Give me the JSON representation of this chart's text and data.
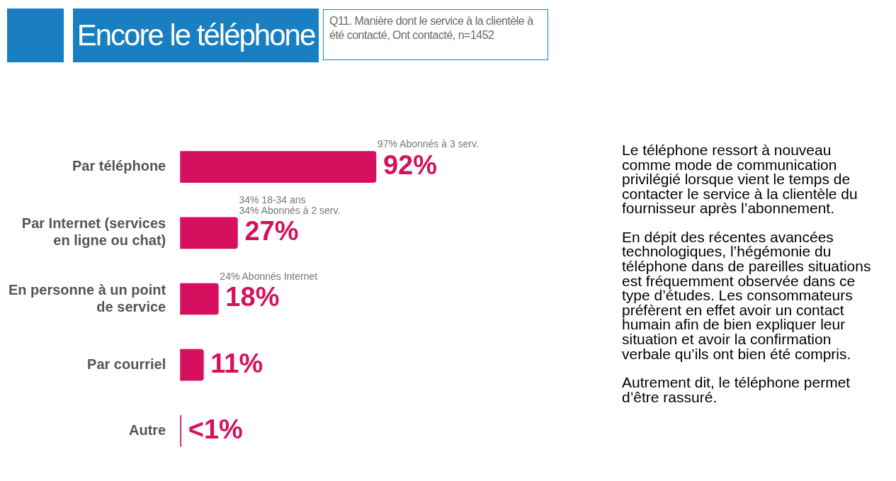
{
  "chart_data": {
    "type": "bar",
    "orientation": "horizontal",
    "tick_labels": "y",
    "title": "Encore le téléphone",
    "subtitle": "Q11. Manière dont le service à la clientèle à été contacté, Ont contacté, n=1452",
    "categories": [
      "Par téléphone",
      "Par Internet (services en ligne ou chat)",
      "En personne à un point de service",
      "Par courriel",
      "Autre"
    ],
    "values": [
      92,
      27,
      18,
      11,
      0.5
    ],
    "value_labels": [
      "92%",
      "27%",
      "18%",
      "11%",
      "<1%"
    ],
    "color": "#d6105e",
    "legend": false,
    "annotations": [
      {
        "text": "97% Abonnés à 3 serv.",
        "x": 92,
        "y": "Par téléphone"
      },
      {
        "text": "34% 18-34 ans",
        "x": 27,
        "y": "Par Internet (services en ligne ou chat)"
      },
      {
        "text": "34% Abonnés à 2 serv.",
        "x": 27,
        "y": "Par Internet (services en ligne ou chat)"
      },
      {
        "text": "24% Abonnés Internet",
        "x": 18,
        "y": "En personne à un point de service"
      },
      "Le téléphone ressort à nouveau comme mode de communication privilégié lorsque vient le temps de contacter le service à la clientèle du fournisseur après l’abonnement.",
      "En dépit des récentes avancées technologiques, l’hégémonie du téléphone dans de pareilles situations est fréquemment observée dans ce type d’études. Les consommateurs préfèrent en effet avoir un contact humain afin de bien expliquer leur situation et avoir la confirmation verbale qu’ils ont bien été compris.",
      "Autrement dit, le téléphone permet d’être rassuré."
    ]
  }
}
